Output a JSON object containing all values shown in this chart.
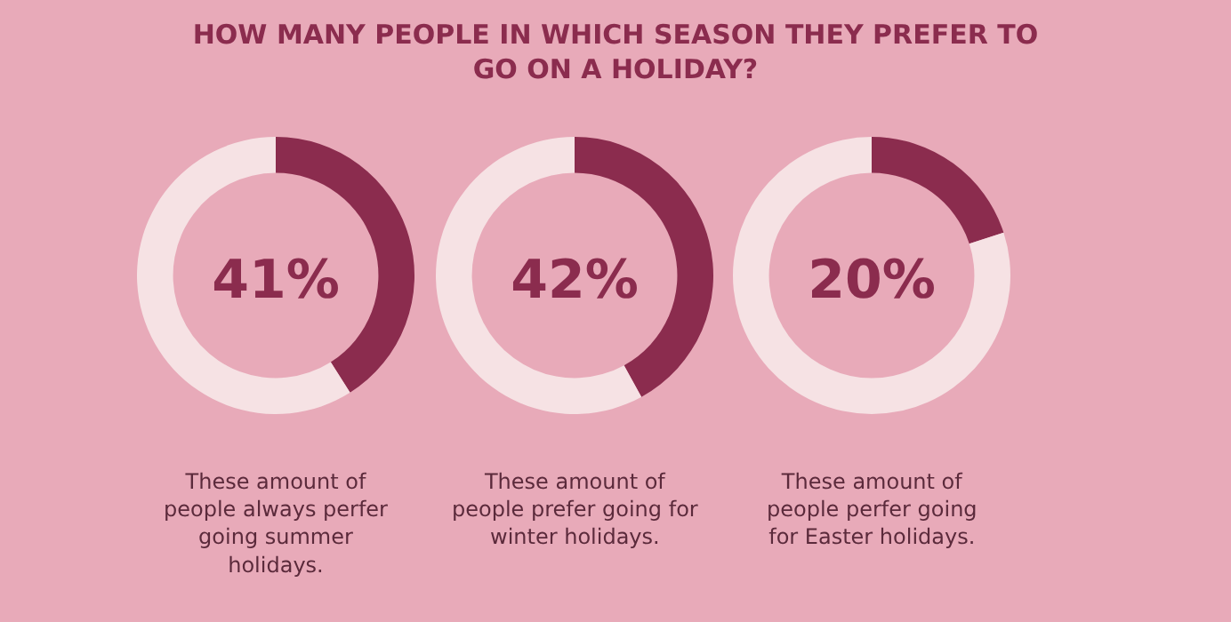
{
  "chart_data": [
    {
      "type": "donut",
      "title": "HOW MANY PEOPLE IN WHICH SEASON THEY PREFER TO GO ON A HOLIDAY?",
      "categories": [
        null,
        null
      ],
      "values": [
        41,
        59
      ],
      "colors": [
        "#8b2c4e",
        "#f6e2e4"
      ],
      "annotations": [
        "41%",
        "These amount of\npeople always perfer\ngoing summer\nholidays."
      ]
    },
    {
      "type": "donut",
      "categories": [
        null,
        null
      ],
      "values": [
        42,
        58
      ],
      "colors": [
        "#8b2c4e",
        "#f6e2e4"
      ],
      "annotations": [
        "42%",
        "These amount of\npeople prefer going for\nwinter holidays."
      ]
    },
    {
      "type": "donut",
      "categories": [
        null,
        null
      ],
      "values": [
        20,
        80
      ],
      "colors": [
        "#8b2c4e",
        "#f6e2e4"
      ],
      "annotations": [
        "20%",
        "These amount of\npeople perfer going\nfor Easter holidays."
      ]
    }
  ]
}
